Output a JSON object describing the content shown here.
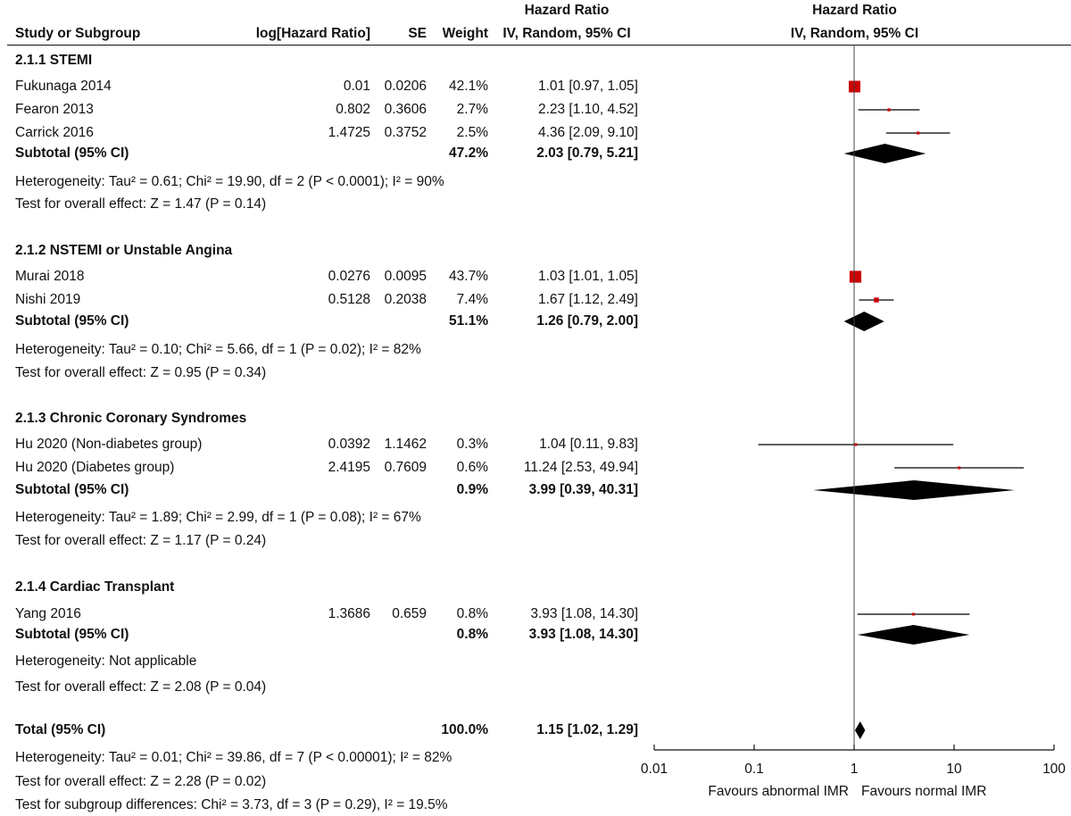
{
  "header": {
    "study": "Study or Subgroup",
    "loghr": "log[Hazard Ratio]",
    "se": "SE",
    "weight": "Weight",
    "hr_title": "Hazard Ratio",
    "hr_method": "IV, Random, 95% CI",
    "plot_title": "Hazard Ratio",
    "plot_method": "IV, Random, 95% CI"
  },
  "chart_data": {
    "type": "forest",
    "scale": "log",
    "xlim": [
      0.01,
      100
    ],
    "reference_line": 1,
    "axis_ticks": [
      "0.01",
      "0.1",
      "1",
      "10",
      "100"
    ],
    "axis_tick_values": [
      0.01,
      0.1,
      1,
      10,
      100
    ],
    "favours_left": "Favours abnormal IMR",
    "favours_right": "Favours normal IMR",
    "colors": {
      "study_box": "#cc0000",
      "diamond": "#000000",
      "line": "#000000"
    },
    "subgroups": [
      {
        "title": "2.1.1 STEMI",
        "studies": [
          {
            "name": "Fukunaga 2014",
            "loghr": "0.01",
            "se": "0.0206",
            "weight": "42.1%",
            "ci_text": "1.01 [0.97, 1.05]",
            "hr": 1.01,
            "lo": 0.97,
            "hi": 1.05,
            "w": 42.1
          },
          {
            "name": "Fearon 2013",
            "loghr": "0.802",
            "se": "0.3606",
            "weight": "2.7%",
            "ci_text": "2.23 [1.10, 4.52]",
            "hr": 2.23,
            "lo": 1.1,
            "hi": 4.52,
            "w": 2.7
          },
          {
            "name": "Carrick 2016",
            "loghr": "1.4725",
            "se": "0.3752",
            "weight": "2.5%",
            "ci_text": "4.36 [2.09, 9.10]",
            "hr": 4.36,
            "lo": 2.09,
            "hi": 9.1,
            "w": 2.5
          }
        ],
        "subtotal": {
          "label": "Subtotal (95% CI)",
          "weight": "47.2%",
          "ci_text": "2.03 [0.79, 5.21]",
          "hr": 2.03,
          "lo": 0.79,
          "hi": 5.21
        },
        "heterogeneity": "Heterogeneity: Tau² = 0.61; Chi² = 19.90, df = 2 (P < 0.0001); I² = 90%",
        "overall": "Test for overall effect: Z = 1.47 (P = 0.14)"
      },
      {
        "title": "2.1.2 NSTEMI or Unstable Angina",
        "studies": [
          {
            "name": "Murai 2018",
            "loghr": "0.0276",
            "se": "0.0095",
            "weight": "43.7%",
            "ci_text": "1.03 [1.01, 1.05]",
            "hr": 1.03,
            "lo": 1.01,
            "hi": 1.05,
            "w": 43.7
          },
          {
            "name": "Nishi 2019",
            "loghr": "0.5128",
            "se": "0.2038",
            "weight": "7.4%",
            "ci_text": "1.67 [1.12, 2.49]",
            "hr": 1.67,
            "lo": 1.12,
            "hi": 2.49,
            "w": 7.4
          }
        ],
        "subtotal": {
          "label": "Subtotal (95% CI)",
          "weight": "51.1%",
          "ci_text": "1.26 [0.79, 2.00]",
          "hr": 1.26,
          "lo": 0.79,
          "hi": 2.0
        },
        "heterogeneity": "Heterogeneity: Tau² = 0.10; Chi² = 5.66, df = 1 (P = 0.02); I² = 82%",
        "overall": "Test for overall effect: Z = 0.95 (P = 0.34)"
      },
      {
        "title": "2.1.3 Chronic Coronary Syndromes",
        "studies": [
          {
            "name": "Hu 2020 (Non-diabetes group)",
            "loghr": "0.0392",
            "se": "1.1462",
            "weight": "0.3%",
            "ci_text": "1.04 [0.11, 9.83]",
            "hr": 1.04,
            "lo": 0.11,
            "hi": 9.83,
            "w": 0.3
          },
          {
            "name": "Hu 2020 (Diabetes group)",
            "loghr": "2.4195",
            "se": "0.7609",
            "weight": "0.6%",
            "ci_text": "11.24 [2.53, 49.94]",
            "hr": 11.24,
            "lo": 2.53,
            "hi": 49.94,
            "w": 0.6
          }
        ],
        "subtotal": {
          "label": "Subtotal (95% CI)",
          "weight": "0.9%",
          "ci_text": "3.99 [0.39, 40.31]",
          "hr": 3.99,
          "lo": 0.39,
          "hi": 40.31
        },
        "heterogeneity": "Heterogeneity: Tau² = 1.89; Chi² = 2.99, df = 1 (P = 0.08); I² = 67%",
        "overall": "Test for overall effect: Z = 1.17 (P = 0.24)"
      },
      {
        "title": "2.1.4 Cardiac Transplant",
        "studies": [
          {
            "name": "Yang 2016",
            "loghr": "1.3686",
            "se": "0.659",
            "weight": "0.8%",
            "ci_text": "3.93 [1.08, 14.30]",
            "hr": 3.93,
            "lo": 1.08,
            "hi": 14.3,
            "w": 0.8
          }
        ],
        "subtotal": {
          "label": "Subtotal (95% CI)",
          "weight": "0.8%",
          "ci_text": "3.93 [1.08, 14.30]",
          "hr": 3.93,
          "lo": 1.08,
          "hi": 14.3
        },
        "heterogeneity": "Heterogeneity: Not applicable",
        "overall": "Test for overall effect: Z = 2.08 (P = 0.04)"
      }
    ],
    "total": {
      "label": "Total (95% CI)",
      "weight": "100.0%",
      "ci_text": "1.15 [1.02, 1.29]",
      "hr": 1.15,
      "lo": 1.02,
      "hi": 1.29
    },
    "total_heterogeneity": "Heterogeneity: Tau² = 0.01; Chi² = 39.86, df = 7 (P < 0.00001); I² = 82%",
    "total_overall": "Test for overall effect: Z = 2.28 (P = 0.02)",
    "subgroup_differences": "Test for subgroup differences: Chi² = 3.73, df = 3 (P = 0.29), I² = 19.5%"
  }
}
